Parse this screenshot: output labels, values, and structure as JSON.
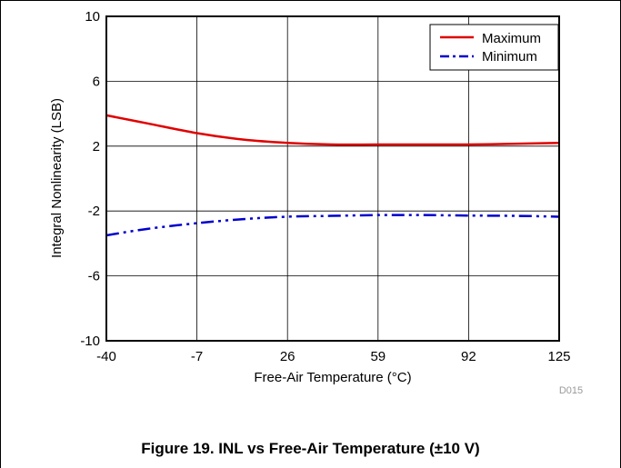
{
  "chart_data": {
    "type": "line",
    "xlabel": "Free-Air Temperature (°C)",
    "ylabel": "Integral Nonlinearity (LSB)",
    "xlim": [
      -40,
      125
    ],
    "ylim": [
      -10,
      10
    ],
    "x_ticks": [
      "-40",
      "-7",
      "26",
      "59",
      "92",
      "125"
    ],
    "y_ticks": [
      "10",
      "6",
      "2",
      "-2",
      "-6",
      "-10"
    ],
    "grid": true,
    "legend_position": "top-right",
    "series": [
      {
        "name": "Maximum",
        "color": "#e00000",
        "style": "solid",
        "x": [
          -40,
          -25,
          -7,
          10,
          26,
          42,
          59,
          75,
          92,
          110,
          125
        ],
        "y": [
          3.9,
          3.4,
          2.8,
          2.4,
          2.2,
          2.1,
          2.1,
          2.1,
          2.1,
          2.15,
          2.2
        ]
      },
      {
        "name": "Minimum",
        "color": "#0000cc",
        "style": "dash-dot-dot",
        "x": [
          -40,
          -25,
          -7,
          10,
          26,
          42,
          59,
          75,
          92,
          110,
          125
        ],
        "y": [
          -3.5,
          -3.1,
          -2.75,
          -2.5,
          -2.35,
          -2.3,
          -2.25,
          -2.25,
          -2.28,
          -2.3,
          -2.35
        ]
      }
    ]
  },
  "watermark": "D015",
  "caption": "Figure 19. INL vs Free-Air Temperature (±10 V)"
}
